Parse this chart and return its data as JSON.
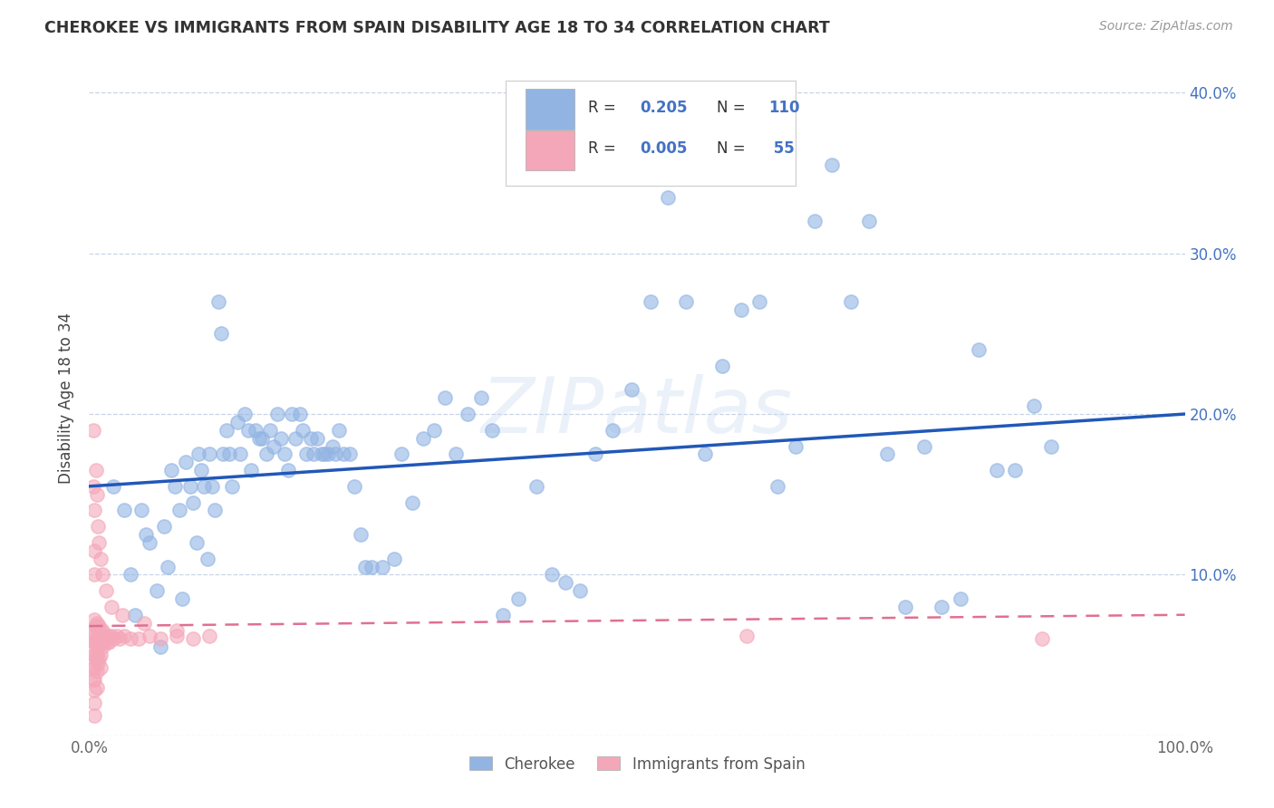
{
  "title": "CHEROKEE VS IMMIGRANTS FROM SPAIN DISABILITY AGE 18 TO 34 CORRELATION CHART",
  "source": "Source: ZipAtlas.com",
  "ylabel": "Disability Age 18 to 34",
  "watermark": "ZIPatlas",
  "xlim": [
    0.0,
    1.0
  ],
  "ylim": [
    0.0,
    0.42
  ],
  "cherokee_color": "#92b4e3",
  "spain_color": "#f4a7b9",
  "cherokee_line_color": "#2158b8",
  "spain_line_color": "#e07090",
  "grid_color": "#c8d4e8",
  "background_color": "#ffffff",
  "cherokee_x": [
    0.022,
    0.032,
    0.038,
    0.042,
    0.048,
    0.052,
    0.055,
    0.062,
    0.065,
    0.068,
    0.072,
    0.075,
    0.078,
    0.082,
    0.085,
    0.088,
    0.092,
    0.095,
    0.098,
    0.1,
    0.102,
    0.105,
    0.108,
    0.11,
    0.112,
    0.115,
    0.118,
    0.12,
    0.122,
    0.125,
    0.128,
    0.13,
    0.135,
    0.138,
    0.142,
    0.145,
    0.148,
    0.152,
    0.155,
    0.158,
    0.162,
    0.165,
    0.168,
    0.172,
    0.175,
    0.178,
    0.182,
    0.185,
    0.188,
    0.192,
    0.195,
    0.198,
    0.202,
    0.205,
    0.208,
    0.212,
    0.215,
    0.218,
    0.222,
    0.225,
    0.228,
    0.232,
    0.238,
    0.242,
    0.248,
    0.252,
    0.258,
    0.268,
    0.278,
    0.285,
    0.295,
    0.305,
    0.315,
    0.325,
    0.335,
    0.345,
    0.358,
    0.368,
    0.378,
    0.392,
    0.408,
    0.422,
    0.435,
    0.448,
    0.462,
    0.478,
    0.495,
    0.512,
    0.528,
    0.545,
    0.562,
    0.578,
    0.595,
    0.612,
    0.628,
    0.645,
    0.662,
    0.678,
    0.695,
    0.712,
    0.728,
    0.745,
    0.762,
    0.778,
    0.795,
    0.812,
    0.828,
    0.845,
    0.862,
    0.878
  ],
  "cherokee_y": [
    0.155,
    0.14,
    0.1,
    0.075,
    0.14,
    0.125,
    0.12,
    0.09,
    0.055,
    0.13,
    0.105,
    0.165,
    0.155,
    0.14,
    0.085,
    0.17,
    0.155,
    0.145,
    0.12,
    0.175,
    0.165,
    0.155,
    0.11,
    0.175,
    0.155,
    0.14,
    0.27,
    0.25,
    0.175,
    0.19,
    0.175,
    0.155,
    0.195,
    0.175,
    0.2,
    0.19,
    0.165,
    0.19,
    0.185,
    0.185,
    0.175,
    0.19,
    0.18,
    0.2,
    0.185,
    0.175,
    0.165,
    0.2,
    0.185,
    0.2,
    0.19,
    0.175,
    0.185,
    0.175,
    0.185,
    0.175,
    0.175,
    0.175,
    0.18,
    0.175,
    0.19,
    0.175,
    0.175,
    0.155,
    0.125,
    0.105,
    0.105,
    0.105,
    0.11,
    0.175,
    0.145,
    0.185,
    0.19,
    0.21,
    0.175,
    0.2,
    0.21,
    0.19,
    0.075,
    0.085,
    0.155,
    0.1,
    0.095,
    0.09,
    0.175,
    0.19,
    0.215,
    0.27,
    0.335,
    0.27,
    0.175,
    0.23,
    0.265,
    0.27,
    0.155,
    0.18,
    0.32,
    0.355,
    0.27,
    0.32,
    0.175,
    0.08,
    0.18,
    0.08,
    0.085,
    0.24,
    0.165,
    0.165,
    0.205,
    0.18
  ],
  "spain_x": [
    0.004,
    0.004,
    0.004,
    0.004,
    0.004,
    0.005,
    0.005,
    0.005,
    0.005,
    0.005,
    0.005,
    0.005,
    0.005,
    0.005,
    0.006,
    0.006,
    0.006,
    0.007,
    0.007,
    0.007,
    0.007,
    0.007,
    0.008,
    0.008,
    0.008,
    0.009,
    0.009,
    0.009,
    0.01,
    0.01,
    0.01,
    0.01,
    0.011,
    0.012,
    0.012,
    0.013,
    0.014,
    0.015,
    0.016,
    0.017,
    0.018,
    0.02,
    0.022,
    0.025,
    0.028,
    0.032,
    0.038,
    0.045,
    0.055,
    0.065,
    0.08,
    0.095,
    0.11,
    0.6,
    0.87
  ],
  "spain_y": [
    0.065,
    0.058,
    0.05,
    0.042,
    0.035,
    0.072,
    0.065,
    0.058,
    0.05,
    0.042,
    0.035,
    0.028,
    0.02,
    0.012,
    0.068,
    0.058,
    0.048,
    0.07,
    0.06,
    0.05,
    0.04,
    0.03,
    0.065,
    0.055,
    0.045,
    0.068,
    0.058,
    0.048,
    0.065,
    0.058,
    0.05,
    0.042,
    0.062,
    0.065,
    0.055,
    0.062,
    0.058,
    0.062,
    0.058,
    0.062,
    0.058,
    0.062,
    0.06,
    0.062,
    0.06,
    0.062,
    0.06,
    0.06,
    0.062,
    0.06,
    0.062,
    0.06,
    0.062,
    0.062,
    0.06
  ],
  "spain_x_high": [
    0.004,
    0.004,
    0.005,
    0.005,
    0.005,
    0.006,
    0.007,
    0.008,
    0.009,
    0.01,
    0.012,
    0.015,
    0.02,
    0.03,
    0.05,
    0.08
  ],
  "spain_y_high": [
    0.19,
    0.155,
    0.14,
    0.115,
    0.1,
    0.165,
    0.15,
    0.13,
    0.12,
    0.11,
    0.1,
    0.09,
    0.08,
    0.075,
    0.07,
    0.065
  ]
}
